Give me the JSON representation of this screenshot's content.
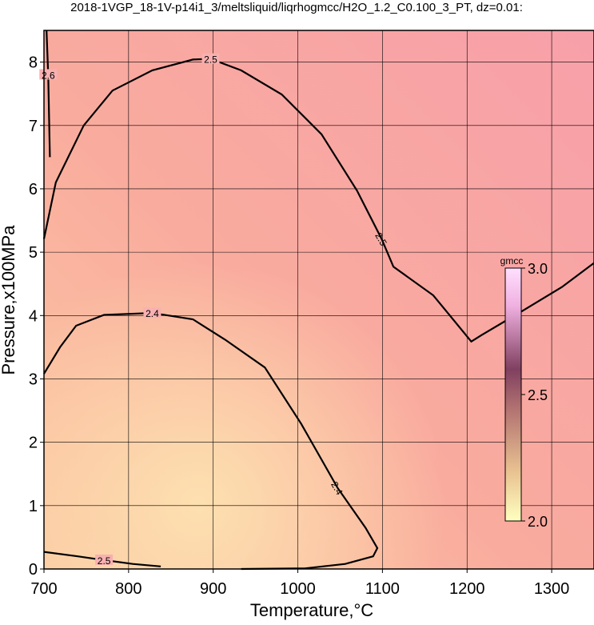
{
  "chart_data": {
    "type": "contour",
    "title": "2018-1VGP_18-1V-p14i1_3/meltsliquid/liqrhogmcc/H2O_1.2_C0.100_3_PT, dz=0.01:",
    "xlabel": "Temperature,°C",
    "ylabel": "Pressure,x100MPa",
    "xlim": [
      700,
      1350
    ],
    "ylim": [
      0,
      8.5
    ],
    "xticks": [
      700,
      800,
      900,
      1000,
      1100,
      1200,
      1300
    ],
    "yticks": [
      0,
      1,
      2,
      3,
      4,
      5,
      6,
      7,
      8
    ],
    "grid": true,
    "contours": [
      {
        "level": 2.5,
        "x": [
          700,
          714,
          747,
          781,
          828,
          876,
          897,
          933,
          981,
          1028,
          1070,
          1099,
          1113,
          1160,
          1205,
          1217,
          1265,
          1312,
          1350
        ],
        "y": [
          5.21,
          6.1,
          7.0,
          7.55,
          7.87,
          8.04,
          8.05,
          7.87,
          7.49,
          6.86,
          5.97,
          5.21,
          4.77,
          4.32,
          3.59,
          3.69,
          4.07,
          4.45,
          4.83
        ]
      },
      {
        "level": 2.4,
        "x": [
          700,
          719,
          738,
          771,
          828,
          876,
          914,
          961,
          1004,
          1047,
          1080,
          1094,
          1089,
          1056,
          1009,
          933
        ],
        "y": [
          3.08,
          3.5,
          3.84,
          4.01,
          4.04,
          3.94,
          3.62,
          3.18,
          2.29,
          1.28,
          0.65,
          0.33,
          0.2,
          0.08,
          0.01,
          0
        ]
      },
      {
        "level": 2.5,
        "x": [
          700,
          740,
          771,
          805,
          838
        ],
        "y": [
          0.27,
          0.2,
          0.14,
          0.08,
          0.04
        ]
      },
      {
        "level": 2.6,
        "x": [
          703,
          705,
          707
        ],
        "y": [
          8.5,
          7.8,
          6.5
        ]
      }
    ],
    "colorbar": {
      "label": "gmcc",
      "lim": [
        2.0,
        3.0
      ],
      "ticks": [
        {
          "value": 2.0,
          "label": "2.0"
        },
        2.5,
        {
          "value": 3.0,
          "label": "3.0"
        }
      ]
    }
  }
}
